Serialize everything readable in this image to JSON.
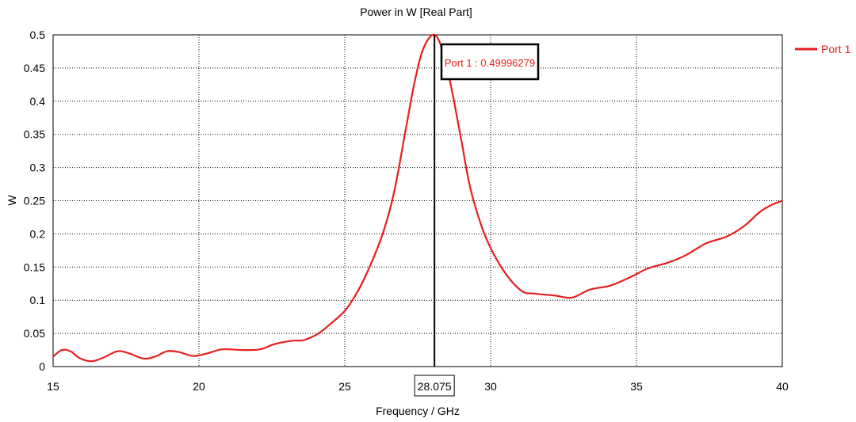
{
  "chart_data": {
    "type": "line",
    "title": "Power in W [Real Part]",
    "xlabel": "Frequency / GHz",
    "ylabel": "W",
    "xlim": [
      15,
      40
    ],
    "ylim": [
      0,
      0.5
    ],
    "grid": true,
    "legend_position": "top-right",
    "x_ticks": [
      15,
      20,
      25,
      30,
      35,
      40
    ],
    "x_tick_labels": [
      "15",
      "20",
      "25",
      "30",
      "35",
      "40"
    ],
    "y_ticks": [
      0,
      0.05,
      0.1,
      0.15,
      0.2,
      0.25,
      0.3,
      0.35,
      0.4,
      0.45,
      0.5
    ],
    "y_tick_labels": [
      "0",
      "0.05",
      "0.1",
      "0.15",
      "0.2",
      "0.25",
      "0.3",
      "0.35",
      "0.4",
      "0.45",
      "0.5"
    ],
    "series": [
      {
        "name": "Port 1",
        "color": "#e81e1e",
        "x": [
          15,
          15.3,
          15.6,
          15.9,
          16.3,
          16.7,
          17.2,
          17.6,
          18.1,
          18.5,
          18.9,
          19.3,
          19.8,
          20.3,
          20.8,
          21.5,
          22.1,
          22.6,
          23.2,
          23.6,
          24.1,
          24.5,
          25,
          25.4,
          25.8,
          26.3,
          26.7,
          27.1,
          27.4,
          27.7,
          28.075,
          28.4,
          28.7,
          29,
          29.3,
          29.7,
          30.1,
          30.6,
          31.1,
          31.5,
          32.2,
          32.8,
          33.4,
          34.1,
          34.8,
          35.4,
          36.1,
          36.7,
          37.4,
          38.1,
          38.7,
          39.2,
          39.6,
          40
        ],
        "y": [
          0.015,
          0.025,
          0.023,
          0.013,
          0.008,
          0.013,
          0.023,
          0.02,
          0.012,
          0.015,
          0.023,
          0.022,
          0.016,
          0.02,
          0.026,
          0.025,
          0.026,
          0.034,
          0.039,
          0.04,
          0.05,
          0.064,
          0.084,
          0.11,
          0.145,
          0.2,
          0.265,
          0.36,
          0.43,
          0.48,
          0.49996279,
          0.47,
          0.41,
          0.34,
          0.27,
          0.21,
          0.17,
          0.135,
          0.113,
          0.11,
          0.107,
          0.104,
          0.116,
          0.122,
          0.135,
          0.148,
          0.157,
          0.168,
          0.186,
          0.196,
          0.212,
          0.232,
          0.243,
          0.25
        ]
      }
    ],
    "marker": {
      "x": 28.075,
      "x_label": "28.075",
      "label": "Port 1 : 0.49996279"
    }
  }
}
